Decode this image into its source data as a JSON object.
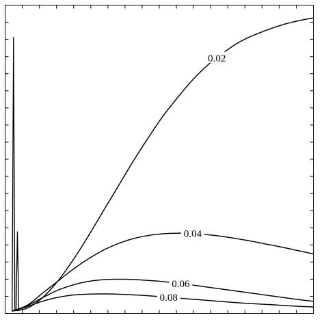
{
  "chart_data": {
    "type": "line",
    "title": "",
    "xlabel": "",
    "ylabel": "",
    "xlim": [
      0,
      1
    ],
    "ylim": [
      0,
      1
    ],
    "grid": false,
    "legend": "none",
    "series": [
      {
        "name": "0.02",
        "x": [
          0.0,
          0.05,
          0.1,
          0.15,
          0.2,
          0.25,
          0.3,
          0.35,
          0.4,
          0.45,
          0.5,
          0.55,
          0.6,
          0.65,
          0.7,
          0.75,
          0.8,
          0.85,
          0.9,
          0.95,
          1.0
        ],
        "y": [
          0.0,
          0.01,
          0.045,
          0.1,
          0.17,
          0.25,
          0.335,
          0.42,
          0.505,
          0.585,
          0.66,
          0.725,
          0.785,
          0.835,
          0.875,
          0.91,
          0.935,
          0.955,
          0.972,
          0.985,
          0.995
        ]
      },
      {
        "name": "0.04",
        "x": [
          0.0,
          0.05,
          0.1,
          0.15,
          0.2,
          0.25,
          0.3,
          0.35,
          0.4,
          0.45,
          0.5,
          0.55,
          0.6,
          0.65,
          0.7,
          0.75,
          0.8,
          0.85,
          0.9,
          0.95,
          1.0
        ],
        "y": [
          0.0,
          0.02,
          0.06,
          0.1,
          0.14,
          0.175,
          0.205,
          0.228,
          0.245,
          0.256,
          0.262,
          0.264,
          0.263,
          0.259,
          0.253,
          0.245,
          0.236,
          0.226,
          0.216,
          0.205,
          0.194
        ]
      },
      {
        "name": "0.06",
        "x": [
          0.0,
          0.05,
          0.1,
          0.15,
          0.2,
          0.25,
          0.3,
          0.35,
          0.4,
          0.45,
          0.5,
          0.55,
          0.6,
          0.65,
          0.7,
          0.75,
          0.8,
          0.85,
          0.9,
          0.95,
          1.0
        ],
        "y": [
          0.0,
          0.018,
          0.045,
          0.07,
          0.088,
          0.1,
          0.106,
          0.108,
          0.107,
          0.104,
          0.1,
          0.094,
          0.088,
          0.081,
          0.074,
          0.067,
          0.06,
          0.053,
          0.046,
          0.039,
          0.033
        ]
      },
      {
        "name": "0.08",
        "x": [
          0.0,
          0.05,
          0.1,
          0.15,
          0.2,
          0.25,
          0.3,
          0.35,
          0.4,
          0.45,
          0.5,
          0.55,
          0.6,
          0.65,
          0.7,
          0.75,
          0.8,
          0.85,
          0.9,
          0.95,
          1.0
        ],
        "y": [
          0.0,
          0.015,
          0.033,
          0.046,
          0.054,
          0.057,
          0.058,
          0.057,
          0.055,
          0.052,
          0.048,
          0.044,
          0.04,
          0.036,
          0.032,
          0.028,
          0.025,
          0.022,
          0.019,
          0.016,
          0.014
        ]
      }
    ],
    "spikes": [
      {
        "x": 0.004,
        "y": 0.93
      },
      {
        "x": 0.017,
        "y": 0.27
      }
    ],
    "curve_labels": [
      {
        "text": "0.02",
        "series": 0,
        "at_x": 0.68
      },
      {
        "text": "0.04",
        "series": 1,
        "at_x": 0.6
      },
      {
        "text": "0.06",
        "series": 2,
        "at_x": 0.56
      },
      {
        "text": "0.08",
        "series": 3,
        "at_x": 0.52
      }
    ],
    "ticks": {
      "x_count": 18,
      "y_count": 18
    }
  }
}
